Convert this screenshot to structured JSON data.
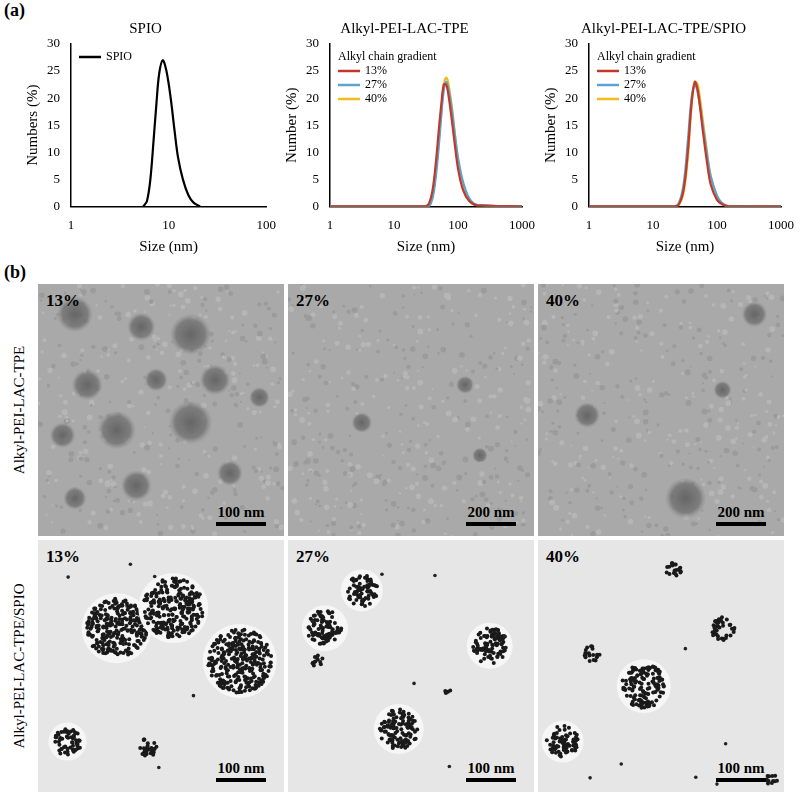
{
  "chart_data": [
    {
      "type": "line",
      "title": "SPIO",
      "x_label": "Size (nm)",
      "y_label": "Numbers (%)",
      "log": "x",
      "grid": false,
      "legend": "upper left",
      "x": [
        5.5,
        6,
        6.5,
        7,
        7.5,
        8,
        8.7,
        9.5,
        10.5,
        11.5,
        12.5,
        14,
        16,
        18,
        21
      ],
      "series": [
        {
          "name": "SPIO",
          "color": "#000000",
          "values": [
            0,
            1,
            5,
            12,
            19,
            24.5,
            27,
            25,
            20,
            14,
            9,
            5,
            2,
            0.7,
            0
          ]
        }
      ],
      "xlim": [
        1,
        100
      ],
      "xticks": [
        1,
        10,
        100
      ],
      "ylim": [
        0,
        30
      ],
      "yticks": [
        0,
        5,
        10,
        15,
        20,
        25,
        30
      ]
    },
    {
      "type": "line",
      "title": "Alkyl-PEI-LAC-TPE",
      "x_label": "Size (nm)",
      "y_label": "Number (%)",
      "legend_title": "Alkyl chain gradient",
      "log": "x",
      "grid": false,
      "legend": "upper left",
      "x": [
        1,
        30,
        35,
        40,
        45,
        50,
        55,
        60,
        65,
        70,
        80,
        90,
        100,
        120,
        150,
        200,
        1000
      ],
      "series": [
        {
          "name": "13%",
          "color": "#c0392b",
          "values": [
            0,
            0,
            0.5,
            3,
            8,
            14,
            19,
            22.5,
            22.5,
            21,
            16,
            11,
            7,
            3,
            1,
            0.2,
            0
          ]
        },
        {
          "name": "27%",
          "color": "#5ba3d0",
          "values": [
            0,
            0,
            0,
            1.5,
            5.5,
            11,
            17,
            21.5,
            23,
            22,
            18,
            13,
            9,
            4.5,
            1.5,
            0.3,
            0
          ]
        },
        {
          "name": "40%",
          "color": "#f5b921",
          "values": [
            0,
            0,
            0,
            1.8,
            6,
            12,
            18,
            22.5,
            23.8,
            23,
            18.5,
            13,
            8.5,
            3.5,
            1,
            0.2,
            0
          ]
        }
      ],
      "xlim": [
        1,
        1000
      ],
      "xticks": [
        1,
        10,
        100,
        1000
      ],
      "ylim": [
        0,
        30
      ],
      "yticks": [
        0,
        5,
        10,
        15,
        20,
        25,
        30
      ]
    },
    {
      "type": "line",
      "title": "Alkyl-PEI-LAC-TPE/SPIO",
      "x_label": "Size (nm)",
      "y_label": "Number (%)",
      "legend_title": "Alkyl chain gradient",
      "log": "x",
      "grid": false,
      "legend": "upper left",
      "x": [
        1,
        20,
        25,
        30,
        35,
        40,
        45,
        50,
        60,
        70,
        80,
        100,
        120,
        150,
        1000
      ],
      "series": [
        {
          "name": "13%",
          "color": "#c0392b",
          "values": [
            0,
            0,
            0.3,
            3,
            10,
            19,
            23,
            21.5,
            14,
            8,
            4,
            1.2,
            0.4,
            0,
            0
          ]
        },
        {
          "name": "27%",
          "color": "#5ba3d0",
          "values": [
            0,
            0,
            0.5,
            4,
            12,
            20,
            22.5,
            21,
            15,
            9.5,
            5.5,
            2,
            0.6,
            0.1,
            0
          ]
        },
        {
          "name": "40%",
          "color": "#f5b921",
          "values": [
            0,
            0,
            0.2,
            2.5,
            9,
            18.5,
            23,
            22.5,
            16,
            10,
            5.5,
            1.8,
            0.5,
            0,
            0
          ]
        }
      ],
      "xlim": [
        1,
        1000
      ],
      "xticks": [
        1,
        10,
        100,
        1000
      ],
      "ylim": [
        0,
        30
      ],
      "yticks": [
        0,
        5,
        10,
        15,
        20,
        25,
        30
      ]
    }
  ],
  "figure": {
    "panel_labels": [
      "(a)",
      "(b)"
    ],
    "tem": {
      "row_labels": [
        "Alkyl-PEI-LAC-TPE",
        "Alkyl-PEI-LAC-TPE/SPIO"
      ],
      "rows": [
        [
          {
            "label": "13%",
            "scale_bar": "100 nm"
          },
          {
            "label": "27%",
            "scale_bar": "200 nm"
          },
          {
            "label": "40%",
            "scale_bar": "200 nm"
          }
        ],
        [
          {
            "label": "13%",
            "scale_bar": "100 nm"
          },
          {
            "label": "27%",
            "scale_bar": "100 nm"
          },
          {
            "label": "40%",
            "scale_bar": "100 nm"
          }
        ]
      ]
    }
  }
}
